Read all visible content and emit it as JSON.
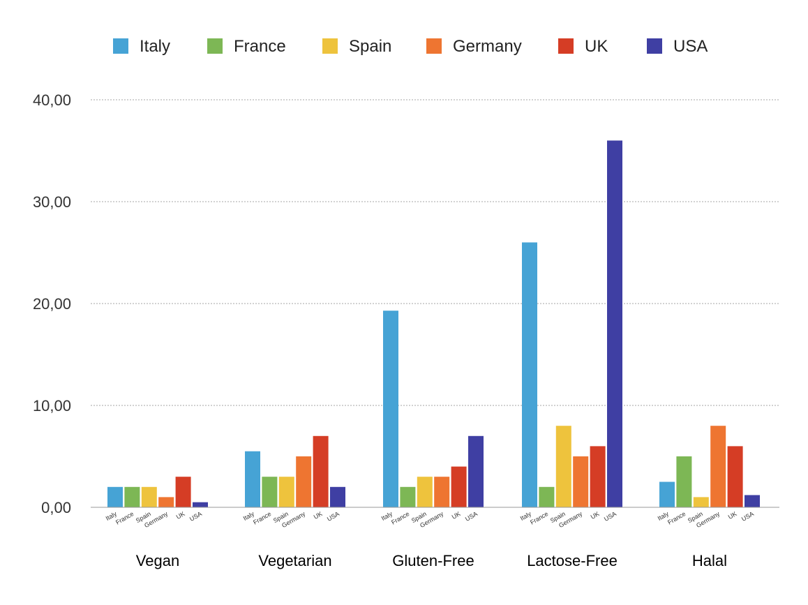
{
  "chart_data": {
    "type": "bar",
    "categories": [
      "Vegan",
      "Vegetarian",
      "Gluten-Free",
      "Lactose-Free",
      "Halal"
    ],
    "series": [
      {
        "name": "Italy",
        "color": "#46A3D5",
        "values": [
          2.0,
          5.5,
          19.3,
          26.0,
          2.5
        ]
      },
      {
        "name": "France",
        "color": "#7DB755",
        "values": [
          2.0,
          3.0,
          2.0,
          2.0,
          5.0
        ]
      },
      {
        "name": "Spain",
        "color": "#EEC33D",
        "values": [
          2.0,
          3.0,
          3.0,
          8.0,
          1.0
        ]
      },
      {
        "name": "Germany",
        "color": "#EE7531",
        "values": [
          1.0,
          5.0,
          3.0,
          5.0,
          8.0
        ]
      },
      {
        "name": "UK",
        "color": "#D53D25",
        "values": [
          3.0,
          7.0,
          4.0,
          6.0,
          6.0
        ]
      },
      {
        "name": "USA",
        "color": "#3F3FA3",
        "values": [
          0.5,
          2.0,
          7.0,
          36.0,
          1.2
        ]
      }
    ],
    "bar_labels": [
      "Italy",
      "France",
      "Spain",
      "Germany",
      "UK",
      "USA"
    ],
    "y_ticks": [
      "0,00",
      "10,00",
      "20,00",
      "30,00",
      "40,00"
    ],
    "ylim": [
      0,
      40
    ],
    "title": "",
    "xlabel": "",
    "ylabel": "",
    "grid": true,
    "legend_position": "top"
  }
}
